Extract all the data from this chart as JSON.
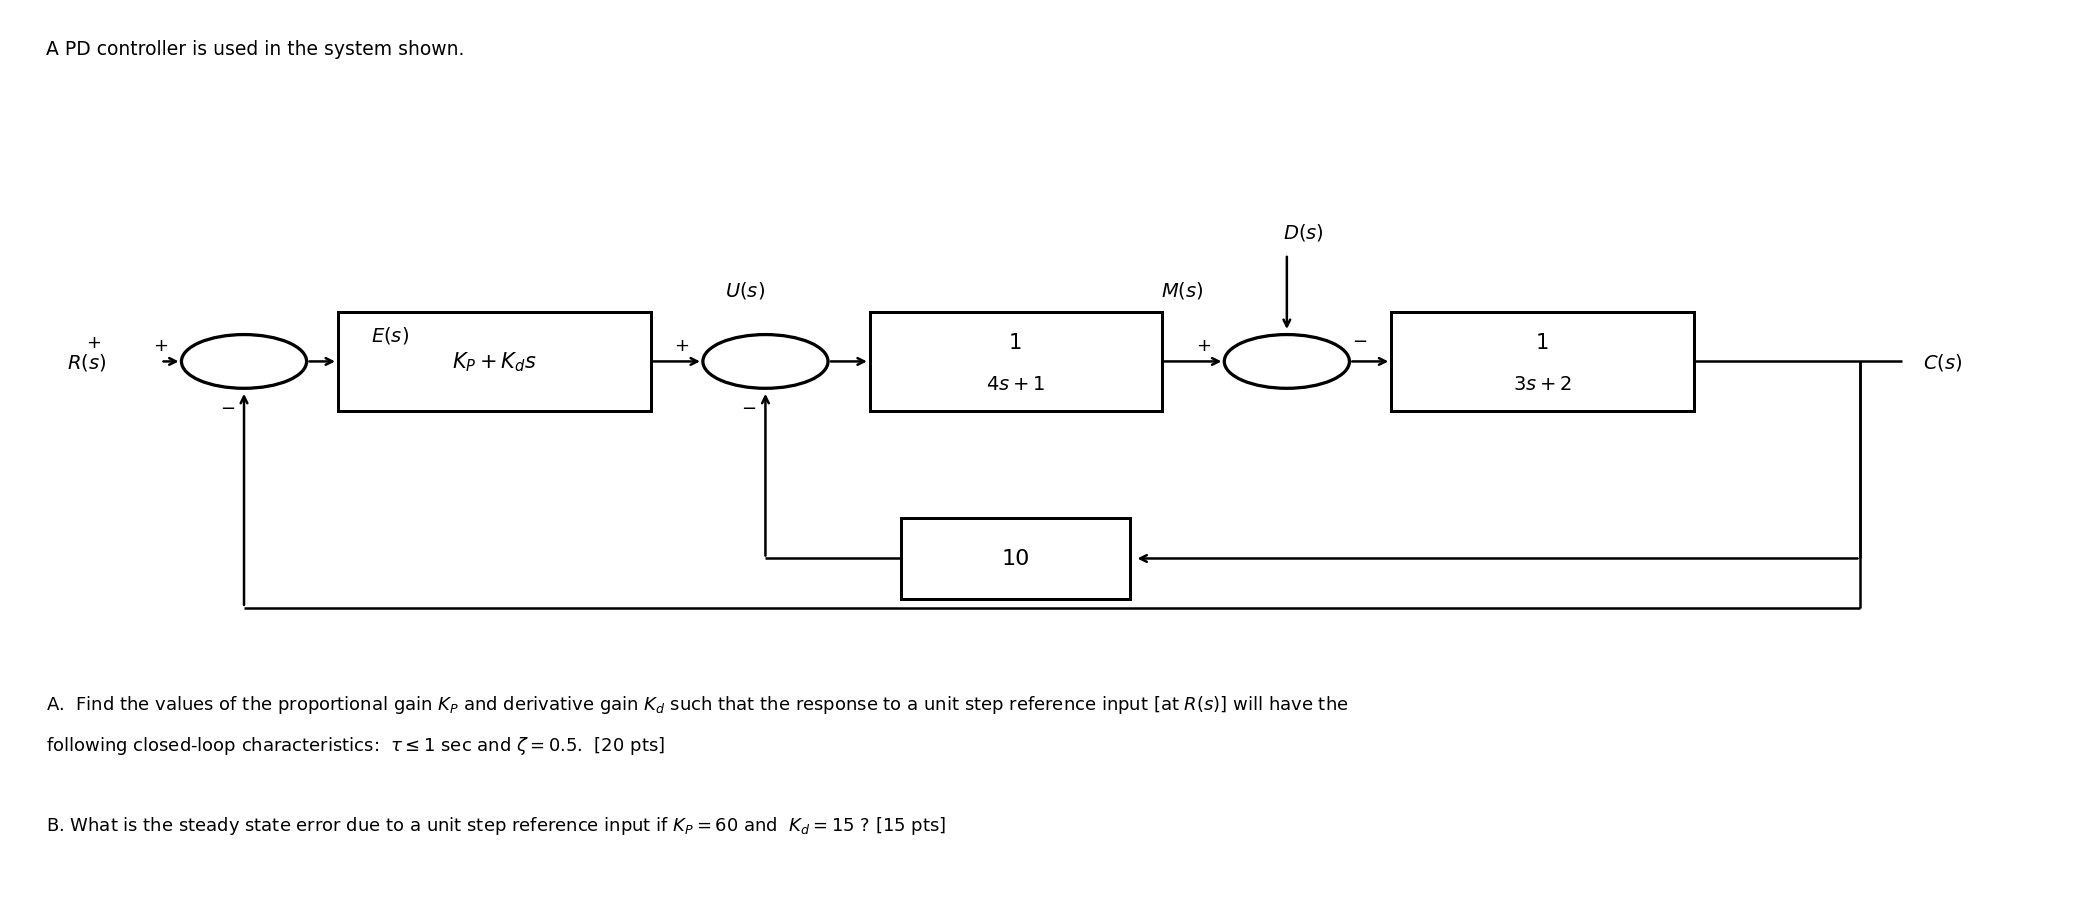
{
  "title_text": "A PD controller is used in the system shown.",
  "background_color": "#ffffff",
  "figsize": [
    20.94,
    9.04
  ],
  "dpi": 100,
  "text_A": "A.  Find the values of the proportional gain $K_P$ and derivative gain $K_d$ such that the response to a unit step reference input [at $R(s)$] will have the\nfollowing closed-loop characteristics:  $\\tau \\leq 1$ sec and $\\zeta = 0.5$.  [20 pts]",
  "text_B": "B. What is the steady state error due to a unit step reference input if $K_P = 60$ and  $K_d = 15$ ? [15 pts]",
  "line_color": "#000000",
  "lw": 1.8
}
